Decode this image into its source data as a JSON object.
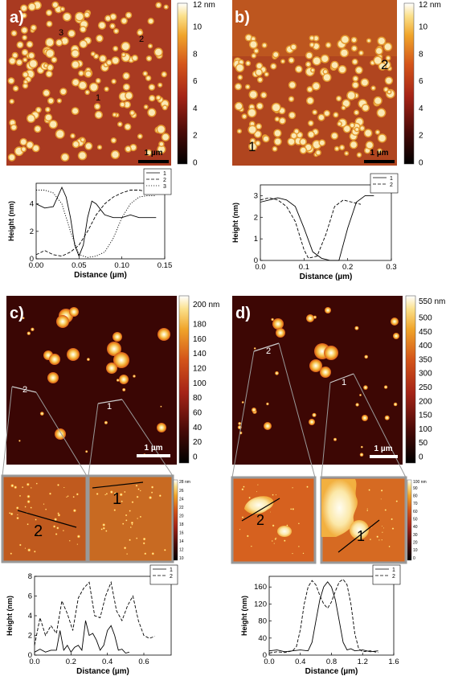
{
  "panels": {
    "a": {
      "letter": "a)",
      "scale_bar_label": "1 µm",
      "profile_markers": [
        "1",
        "2",
        "3"
      ],
      "colorbar": {
        "unit_label": "12 nm",
        "ticks": [
          "10",
          "8",
          "6",
          "4",
          "2",
          "0"
        ]
      }
    },
    "b": {
      "letter": "b)",
      "scale_bar_label": "1 µm",
      "profile_markers": [
        "1",
        "2"
      ],
      "colorbar": {
        "unit_label": "12 nm",
        "ticks": [
          "10",
          "8",
          "6",
          "4",
          "2",
          "0"
        ]
      }
    },
    "c": {
      "letter": "c)",
      "scale_bar_label": "1 µm",
      "zoom_markers": [
        "2",
        "1"
      ],
      "colorbar": {
        "unit_label": "200 nm",
        "ticks": [
          "180",
          "160",
          "140",
          "120",
          "100",
          "80",
          "60",
          "40",
          "20",
          "0"
        ]
      },
      "inset_colorbar": {
        "unit_label": "28 nm",
        "ticks": [
          "26",
          "24",
          "22",
          "20",
          "18",
          "16",
          "14",
          "12",
          "10"
        ]
      },
      "inset_line_labels": [
        "2",
        "1"
      ]
    },
    "d": {
      "letter": "d)",
      "scale_bar_label": "1 µm",
      "zoom_markers": [
        "2",
        "1"
      ],
      "colorbar": {
        "unit_label": "550 nm",
        "ticks": [
          "500",
          "450",
          "400",
          "350",
          "300",
          "250",
          "200",
          "150",
          "100",
          "50",
          "0"
        ]
      },
      "inset_colorbar": {
        "unit_label": "100 nm",
        "ticks": [
          "90",
          "80",
          "70",
          "60",
          "50",
          "40",
          "30",
          "20",
          "10",
          "0"
        ]
      },
      "inset_line_labels": [
        "2",
        "1"
      ]
    }
  },
  "chart_data": [
    {
      "id": "a",
      "type": "line",
      "xlabel": "Distance (µm)",
      "ylabel": "Height (nm)",
      "xlim": [
        0,
        0.15
      ],
      "ylim": [
        0,
        5.5
      ],
      "xticks": [
        "0.00",
        "0.05",
        "0.10",
        "0.15"
      ],
      "yticks": [
        "0",
        "2",
        "4"
      ],
      "legend_position": "top-right",
      "series": [
        {
          "name": "1",
          "style": "solid",
          "x": [
            0,
            0.01,
            0.02,
            0.03,
            0.035,
            0.04,
            0.045,
            0.05,
            0.055,
            0.06,
            0.065,
            0.07,
            0.08,
            0.09,
            0.1,
            0.11,
            0.12,
            0.13,
            0.14
          ],
          "y": [
            4.0,
            3.7,
            3.8,
            5.2,
            4.5,
            3.0,
            1.0,
            0.2,
            1.0,
            3.0,
            4.2,
            4.0,
            3.2,
            3.0,
            3.0,
            3.2,
            3.0,
            3.0,
            3.0
          ]
        },
        {
          "name": "2",
          "style": "dashed",
          "x": [
            0,
            0.01,
            0.02,
            0.03,
            0.04,
            0.05,
            0.06,
            0.07,
            0.08,
            0.09,
            0.1,
            0.11,
            0.12,
            0.13,
            0.14
          ],
          "y": [
            0.3,
            0.6,
            0.3,
            0.2,
            0.5,
            1.0,
            2.0,
            3.2,
            4.0,
            4.5,
            4.8,
            5.0,
            5.0,
            4.9,
            5.0
          ]
        },
        {
          "name": "3",
          "style": "dotted",
          "x": [
            0,
            0.01,
            0.02,
            0.03,
            0.04,
            0.05,
            0.06,
            0.07,
            0.08,
            0.09,
            0.1,
            0.11,
            0.12,
            0.13,
            0.14
          ],
          "y": [
            5.0,
            5.0,
            4.8,
            4.0,
            2.0,
            0.3,
            0.1,
            0.2,
            0.5,
            1.5,
            3.0,
            4.0,
            4.5,
            4.6,
            4.6
          ]
        }
      ]
    },
    {
      "id": "b",
      "type": "line",
      "xlabel": "Distance (µm)",
      "ylabel": "Height (nm)",
      "xlim": [
        0,
        0.3
      ],
      "ylim": [
        0,
        3.5
      ],
      "xticks": [
        "0.0",
        "0.1",
        "0.2",
        "0.3"
      ],
      "yticks": [
        "0",
        "1",
        "2",
        "3"
      ],
      "legend_position": "top-right",
      "series": [
        {
          "name": "1",
          "style": "solid",
          "x": [
            0,
            0.02,
            0.04,
            0.06,
            0.08,
            0.1,
            0.12,
            0.14,
            0.16,
            0.18,
            0.2,
            0.22,
            0.24,
            0.26
          ],
          "y": [
            2.7,
            2.8,
            2.9,
            2.8,
            2.5,
            1.5,
            0.4,
            0.1,
            0.0,
            0.0,
            1.5,
            2.7,
            3.0,
            3.0
          ]
        },
        {
          "name": "2",
          "style": "dashed",
          "x": [
            0,
            0.02,
            0.04,
            0.06,
            0.08,
            0.1,
            0.11,
            0.13,
            0.15,
            0.17,
            0.19,
            0.21,
            0.23
          ],
          "y": [
            2.8,
            2.9,
            2.8,
            2.5,
            1.8,
            0.5,
            0.1,
            0.2,
            1.2,
            2.5,
            2.8,
            2.7,
            2.6
          ]
        }
      ]
    },
    {
      "id": "c",
      "type": "line",
      "xlabel": "Distance (µm)",
      "ylabel": "Height (nm)",
      "xlim": [
        0,
        0.75
      ],
      "ylim": [
        0,
        8
      ],
      "xticks": [
        "0.0",
        "0.2",
        "0.4",
        "0.6"
      ],
      "yticks": [
        "0",
        "2",
        "4",
        "6",
        "8"
      ],
      "legend_position": "top-right",
      "series": [
        {
          "name": "1",
          "style": "solid",
          "x": [
            0,
            0.03,
            0.06,
            0.09,
            0.12,
            0.14,
            0.16,
            0.18,
            0.2,
            0.22,
            0.24,
            0.26,
            0.28,
            0.3,
            0.32,
            0.34,
            0.36,
            0.38,
            0.4,
            0.42,
            0.44,
            0.46,
            0.48,
            0.5,
            0.52
          ],
          "y": [
            0.3,
            0.6,
            0.3,
            0.5,
            0.5,
            2.5,
            0.5,
            1.0,
            0.3,
            0.8,
            1.0,
            0.5,
            3.5,
            2.0,
            2.2,
            1.5,
            0.5,
            1.0,
            2.5,
            3.0,
            2.0,
            0.5,
            0.6,
            0.2,
            0.3
          ]
        },
        {
          "name": "2",
          "style": "dashed",
          "x": [
            0,
            0.03,
            0.06,
            0.09,
            0.12,
            0.15,
            0.18,
            0.21,
            0.24,
            0.27,
            0.3,
            0.33,
            0.36,
            0.39,
            0.42,
            0.45,
            0.48,
            0.51,
            0.54,
            0.57,
            0.6,
            0.63,
            0.66
          ],
          "y": [
            1.0,
            3.8,
            2.0,
            3.0,
            2.2,
            5.5,
            4.2,
            2.5,
            5.8,
            6.8,
            7.4,
            4.0,
            3.8,
            6.0,
            7.4,
            4.5,
            3.5,
            5.0,
            6.0,
            3.5,
            2.0,
            1.7,
            1.9
          ]
        }
      ]
    },
    {
      "id": "d",
      "type": "line",
      "xlabel": "Distance (µm)",
      "ylabel": "Height (nm)",
      "xlim": [
        0,
        1.6
      ],
      "ylim": [
        0,
        185
      ],
      "xticks": [
        "0.0",
        "0.4",
        "0.8",
        "1.2",
        "1.6"
      ],
      "yticks": [
        "0",
        "40",
        "80",
        "120",
        "160"
      ],
      "legend_position": "top-right",
      "series": [
        {
          "name": "1",
          "style": "solid",
          "x": [
            0,
            0.1,
            0.2,
            0.3,
            0.4,
            0.5,
            0.55,
            0.6,
            0.65,
            0.7,
            0.75,
            0.8,
            0.85,
            0.9,
            0.95,
            1.0,
            1.05,
            1.1,
            1.2,
            1.3,
            1.4
          ],
          "y": [
            10,
            12,
            8,
            10,
            12,
            10,
            30,
            80,
            130,
            160,
            172,
            160,
            130,
            80,
            30,
            12,
            15,
            10,
            12,
            8,
            10
          ]
        },
        {
          "name": "2",
          "style": "dashed",
          "x": [
            0,
            0.1,
            0.2,
            0.3,
            0.35,
            0.4,
            0.45,
            0.5,
            0.55,
            0.6,
            0.65,
            0.7,
            0.75,
            0.8,
            0.85,
            0.9,
            0.95,
            1.0,
            1.05,
            1.1,
            1.15,
            1.2,
            1.3,
            1.4
          ],
          "y": [
            5,
            8,
            6,
            10,
            20,
            60,
            120,
            160,
            175,
            165,
            140,
            120,
            110,
            125,
            150,
            172,
            178,
            165,
            120,
            50,
            15,
            8,
            10,
            6
          ]
        }
      ]
    }
  ]
}
